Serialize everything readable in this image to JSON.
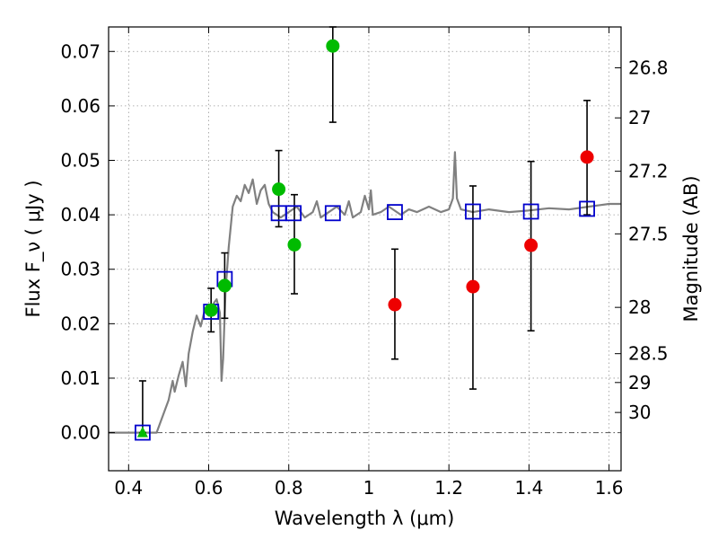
{
  "chart_data": {
    "type": "scatter",
    "title": "",
    "xlabel": "Wavelength  λ (μm)",
    "ylabel": "Flux  F_ν  ( μJy )",
    "ylabel_right": "Magnitude (AB)",
    "xlim": [
      0.35,
      1.63
    ],
    "ylim": [
      -0.007,
      0.0745
    ],
    "grid": true,
    "colors": {
      "sed": "#808080",
      "model_box": "#0000cc",
      "green": "#00bb00",
      "red": "#ee0000",
      "errorbar": "#000000",
      "zero_line": "#555555"
    },
    "x_ticks": [
      {
        "value": 0.4,
        "label": "0.4"
      },
      {
        "value": 0.6,
        "label": "0.6"
      },
      {
        "value": 0.8,
        "label": "0.8"
      },
      {
        "value": 1.0,
        "label": "1"
      },
      {
        "value": 1.2,
        "label": "1.2"
      },
      {
        "value": 1.4,
        "label": "1.4"
      },
      {
        "value": 1.6,
        "label": "1.6"
      }
    ],
    "y_ticks": [
      {
        "value": 0.0,
        "label": "0.00"
      },
      {
        "value": 0.01,
        "label": "0.01"
      },
      {
        "value": 0.02,
        "label": "0.02"
      },
      {
        "value": 0.03,
        "label": "0.03"
      },
      {
        "value": 0.04,
        "label": "0.04"
      },
      {
        "value": 0.05,
        "label": "0.05"
      },
      {
        "value": 0.06,
        "label": "0.06"
      },
      {
        "value": 0.07,
        "label": "0.07"
      }
    ],
    "mag_ticks": [
      {
        "value": 0.067,
        "label": "26.8"
      },
      {
        "value": 0.0578,
        "label": "27"
      },
      {
        "value": 0.048,
        "label": "27.2"
      },
      {
        "value": 0.0365,
        "label": "27.5"
      },
      {
        "value": 0.023,
        "label": "28"
      },
      {
        "value": 0.0145,
        "label": "28.5"
      },
      {
        "value": 0.0092,
        "label": "29"
      },
      {
        "value": 0.0037,
        "label": "30"
      }
    ],
    "series": [
      {
        "name": "model-photometry",
        "marker": "open-square",
        "points": [
          {
            "x": 0.435,
            "y": 0.0
          },
          {
            "x": 0.606,
            "y": 0.0222
          },
          {
            "x": 0.64,
            "y": 0.0282
          },
          {
            "x": 0.775,
            "y": 0.0403
          },
          {
            "x": 0.812,
            "y": 0.0403
          },
          {
            "x": 0.91,
            "y": 0.0403
          },
          {
            "x": 1.065,
            "y": 0.0405
          },
          {
            "x": 1.26,
            "y": 0.0406
          },
          {
            "x": 1.405,
            "y": 0.0406
          },
          {
            "x": 1.545,
            "y": 0.0411
          }
        ]
      },
      {
        "name": "observed-optical",
        "marker": "circle",
        "color": "green",
        "points": [
          {
            "x": 0.606,
            "y": 0.0225,
            "err_lo": 0.0185,
            "err_hi": 0.0265
          },
          {
            "x": 0.64,
            "y": 0.027,
            "err_lo": 0.021,
            "err_hi": 0.033
          },
          {
            "x": 0.775,
            "y": 0.0447,
            "err_lo": 0.0378,
            "err_hi": 0.0518
          },
          {
            "x": 0.814,
            "y": 0.0345,
            "err_lo": 0.0255,
            "err_hi": 0.0437
          },
          {
            "x": 0.91,
            "y": 0.071,
            "err_lo": 0.057,
            "err_hi": 0.0745
          }
        ]
      },
      {
        "name": "observed-upper-limit",
        "marker": "triangle",
        "color": "green",
        "points": [
          {
            "x": 0.435,
            "y": 0.0,
            "err_lo": 0.0,
            "err_hi": 0.0095
          }
        ]
      },
      {
        "name": "observed-nir",
        "marker": "circle",
        "color": "red",
        "points": [
          {
            "x": 1.065,
            "y": 0.0235,
            "err_lo": 0.0135,
            "err_hi": 0.0337
          },
          {
            "x": 1.26,
            "y": 0.0268,
            "err_lo": 0.008,
            "err_hi": 0.0453
          },
          {
            "x": 1.405,
            "y": 0.0344,
            "err_lo": 0.0187,
            "err_hi": 0.0498
          },
          {
            "x": 1.545,
            "y": 0.0506,
            "err_lo": 0.04,
            "err_hi": 0.061
          }
        ]
      },
      {
        "name": "sed-model",
        "marker": "line",
        "points": [
          {
            "x": 0.35,
            "y": 0.0
          },
          {
            "x": 0.47,
            "y": 0.0
          },
          {
            "x": 0.48,
            "y": 0.002
          },
          {
            "x": 0.5,
            "y": 0.006
          },
          {
            "x": 0.51,
            "y": 0.0095
          },
          {
            "x": 0.515,
            "y": 0.0075
          },
          {
            "x": 0.525,
            "y": 0.0105
          },
          {
            "x": 0.535,
            "y": 0.013
          },
          {
            "x": 0.543,
            "y": 0.0085
          },
          {
            "x": 0.55,
            "y": 0.0145
          },
          {
            "x": 0.56,
            "y": 0.0185
          },
          {
            "x": 0.57,
            "y": 0.0215
          },
          {
            "x": 0.58,
            "y": 0.0195
          },
          {
            "x": 0.59,
            "y": 0.0225
          },
          {
            "x": 0.6,
            "y": 0.0215
          },
          {
            "x": 0.61,
            "y": 0.0235
          },
          {
            "x": 0.62,
            "y": 0.0245
          },
          {
            "x": 0.628,
            "y": 0.022
          },
          {
            "x": 0.632,
            "y": 0.0095
          },
          {
            "x": 0.636,
            "y": 0.0135
          },
          {
            "x": 0.642,
            "y": 0.026
          },
          {
            "x": 0.65,
            "y": 0.034
          },
          {
            "x": 0.66,
            "y": 0.0415
          },
          {
            "x": 0.67,
            "y": 0.0435
          },
          {
            "x": 0.68,
            "y": 0.0425
          },
          {
            "x": 0.69,
            "y": 0.0455
          },
          {
            "x": 0.7,
            "y": 0.044
          },
          {
            "x": 0.71,
            "y": 0.0465
          },
          {
            "x": 0.72,
            "y": 0.042
          },
          {
            "x": 0.73,
            "y": 0.0445
          },
          {
            "x": 0.74,
            "y": 0.0455
          },
          {
            "x": 0.75,
            "y": 0.042
          },
          {
            "x": 0.76,
            "y": 0.0405
          },
          {
            "x": 0.78,
            "y": 0.0395
          },
          {
            "x": 0.8,
            "y": 0.0405
          },
          {
            "x": 0.82,
            "y": 0.0415
          },
          {
            "x": 0.84,
            "y": 0.0395
          },
          {
            "x": 0.86,
            "y": 0.0405
          },
          {
            "x": 0.87,
            "y": 0.0425
          },
          {
            "x": 0.88,
            "y": 0.0395
          },
          {
            "x": 0.9,
            "y": 0.0405
          },
          {
            "x": 0.92,
            "y": 0.0415
          },
          {
            "x": 0.94,
            "y": 0.04
          },
          {
            "x": 0.95,
            "y": 0.0425
          },
          {
            "x": 0.96,
            "y": 0.0395
          },
          {
            "x": 0.98,
            "y": 0.0405
          },
          {
            "x": 0.99,
            "y": 0.0435
          },
          {
            "x": 1.0,
            "y": 0.041
          },
          {
            "x": 1.005,
            "y": 0.0445
          },
          {
            "x": 1.01,
            "y": 0.04
          },
          {
            "x": 1.03,
            "y": 0.0405
          },
          {
            "x": 1.05,
            "y": 0.0415
          },
          {
            "x": 1.08,
            "y": 0.04
          },
          {
            "x": 1.1,
            "y": 0.041
          },
          {
            "x": 1.12,
            "y": 0.0405
          },
          {
            "x": 1.15,
            "y": 0.0415
          },
          {
            "x": 1.18,
            "y": 0.0405
          },
          {
            "x": 1.2,
            "y": 0.041
          },
          {
            "x": 1.21,
            "y": 0.043
          },
          {
            "x": 1.215,
            "y": 0.0515
          },
          {
            "x": 1.22,
            "y": 0.043
          },
          {
            "x": 1.23,
            "y": 0.041
          },
          {
            "x": 1.26,
            "y": 0.0405
          },
          {
            "x": 1.3,
            "y": 0.041
          },
          {
            "x": 1.35,
            "y": 0.0405
          },
          {
            "x": 1.4,
            "y": 0.0408
          },
          {
            "x": 1.45,
            "y": 0.0412
          },
          {
            "x": 1.5,
            "y": 0.041
          },
          {
            "x": 1.55,
            "y": 0.0415
          },
          {
            "x": 1.58,
            "y": 0.0418
          },
          {
            "x": 1.6,
            "y": 0.042
          },
          {
            "x": 1.63,
            "y": 0.042
          }
        ]
      }
    ]
  }
}
